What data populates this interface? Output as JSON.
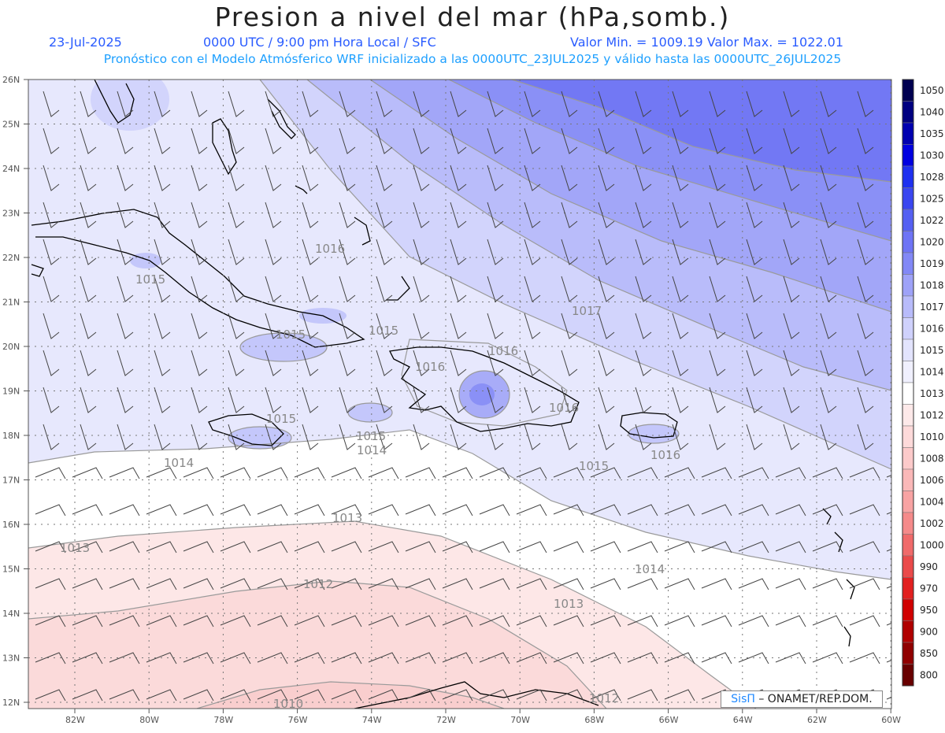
{
  "header": {
    "title": "Presion a nivel del mar (hPa,somb.)",
    "date": "23-Jul-2025",
    "time": "0000 UTC / 9:00 pm Hora Local / SFC",
    "min_max": "Valor Min. = 1009.19  Valor Max. = 1022.01",
    "description": "Pronóstico con el Modelo Atmósferico WRF inicializado a las 0000UTC_23JUL2025 y válido hasta las  0000UTC_26JUL2025"
  },
  "map": {
    "lat_labels": [
      "26N",
      "25N",
      "24N",
      "23N",
      "22N",
      "21N",
      "20N",
      "19N",
      "18N",
      "17N",
      "16N",
      "15N",
      "14N",
      "13N",
      "12N"
    ],
    "lon_labels": [
      "82W",
      "80W",
      "78W",
      "76W",
      "74W",
      "72W",
      "70W",
      "68W",
      "66W",
      "64W",
      "62W",
      "60W"
    ],
    "contour_labels": [
      "1016",
      "1015",
      "1015",
      "1015",
      "1017",
      "1016",
      "1016",
      "1016",
      "1015",
      "1015",
      "1014",
      "1016",
      "1014",
      "1015",
      "1013",
      "1013",
      "1012",
      "1014",
      "1013",
      "1012",
      "1010"
    ],
    "colors": {
      "land_outline": "#000000",
      "contour": "#999999",
      "grid": "#777777",
      "barb": "#444444"
    }
  },
  "legend": {
    "levels": [
      "1050",
      "1040",
      "1035",
      "1030",
      "1028",
      "1025",
      "1022",
      "1020",
      "1019",
      "1018",
      "1017",
      "1016",
      "1015",
      "1014",
      "1013",
      "1012",
      "1010",
      "1008",
      "1006",
      "1004",
      "1002",
      "1000",
      "990",
      "970",
      "950",
      "900",
      "850",
      "800"
    ],
    "colors": [
      "#000050",
      "#000080",
      "#0000b0",
      "#0000e0",
      "#1e30f0",
      "#3a46f0",
      "#5560f2",
      "#6e74f5",
      "#8288f6",
      "#9ea2f8",
      "#b8bbfa",
      "#cfd1fc",
      "#e3e4fd",
      "#f0f0fe",
      "#ffffff",
      "#fde9e9",
      "#fddada",
      "#fccaca",
      "#fab8b8",
      "#f8a3a3",
      "#f58a8a",
      "#f06a6a",
      "#ea4a4a",
      "#e22020",
      "#d00000",
      "#b00000",
      "#900000",
      "#680000"
    ]
  },
  "credit": {
    "brand": "SisΠ",
    "text": " – ONAMET/REP.DOM."
  }
}
